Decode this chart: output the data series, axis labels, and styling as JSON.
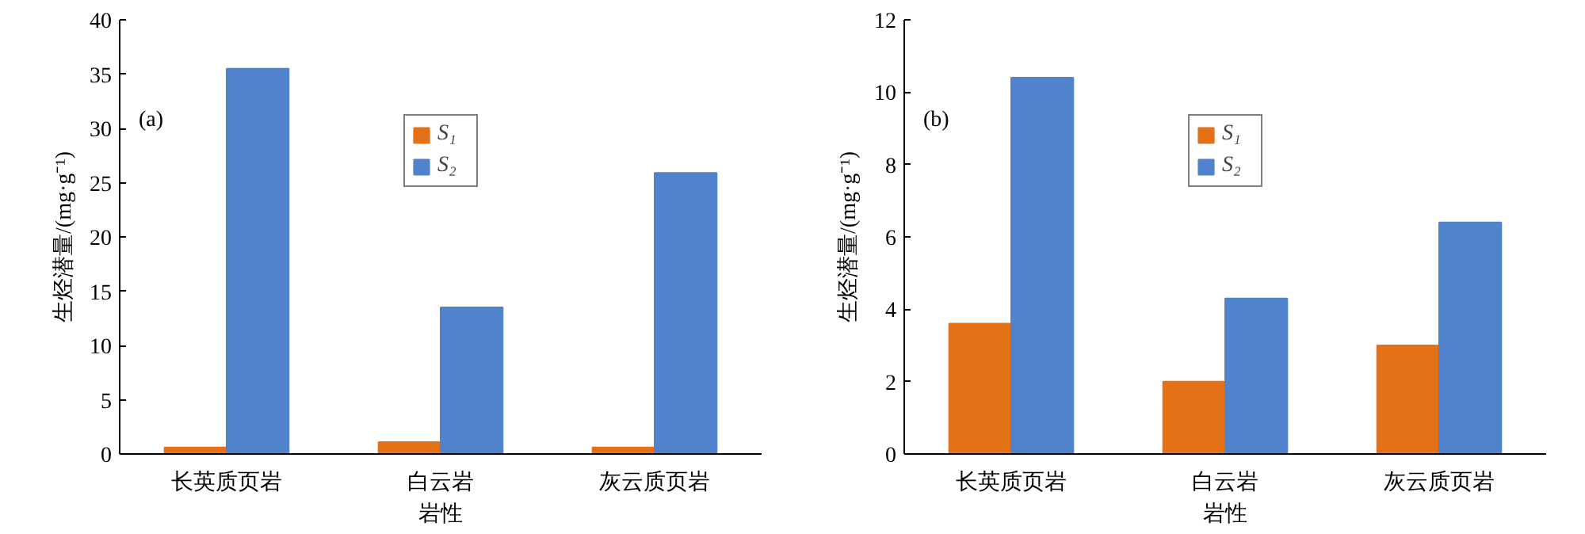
{
  "chart_data": [
    {
      "type": "bar",
      "annotations": [
        "(a)"
      ],
      "xlabel": "岩性",
      "ylabel": "生烃潜量/(mg·g⁻¹)",
      "categories": [
        "长英质页岩",
        "白云岩",
        "灰云质页岩"
      ],
      "ylim": [
        0,
        40
      ],
      "yticks": [
        0,
        5,
        10,
        15,
        20,
        25,
        30,
        35,
        40
      ],
      "grid": false,
      "legend": "top",
      "series": [
        {
          "name": "S₁",
          "color": "#e57117",
          "values": [
            0.6,
            1.1,
            0.6
          ]
        },
        {
          "name": "S₂",
          "color": "#5183cc",
          "values": [
            35.5,
            13.5,
            25.9
          ]
        }
      ]
    },
    {
      "type": "bar",
      "annotations": [
        "(b)"
      ],
      "xlabel": "岩性",
      "ylabel": "生烃潜量/(mg·g⁻¹)",
      "categories": [
        "长英质页岩",
        "白云岩",
        "灰云质页岩"
      ],
      "ylim": [
        0,
        12
      ],
      "yticks": [
        0,
        2,
        4,
        6,
        8,
        10,
        12
      ],
      "grid": false,
      "legend": "top",
      "series": [
        {
          "name": "S₁",
          "color": "#e57117",
          "values": [
            3.6,
            2.0,
            3.0
          ]
        },
        {
          "name": "S₂",
          "color": "#5183cc",
          "values": [
            10.4,
            4.3,
            6.4
          ]
        }
      ]
    }
  ]
}
